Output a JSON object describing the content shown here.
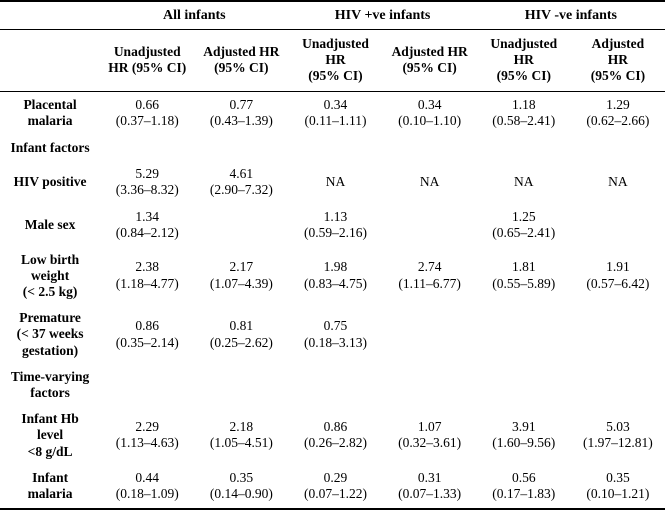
{
  "table": {
    "groups": [
      {
        "label": "",
        "span": 1
      },
      {
        "label": "All infants",
        "span": 2
      },
      {
        "label": "HIV +ve infants",
        "span": 2
      },
      {
        "label": "HIV -ve infants",
        "span": 2
      }
    ],
    "column_headers": [
      "Unadjusted\nHR (95% CI)",
      "Adjusted HR\n(95% CI)",
      "Unadjusted\nHR\n(95% CI)",
      "Adjusted HR\n(95% CI)",
      "Unadjusted\nHR\n(95% CI)",
      "Adjusted\nHR\n(95% CI)"
    ],
    "rows": [
      {
        "type": "data",
        "label": "Placental\nmalaria",
        "cells": [
          "0.66\n(0.37–1.18)",
          "0.77\n(0.43–1.39)",
          "0.34\n(0.11–1.11)",
          "0.34\n(0.10–1.10)",
          "1.18\n(0.58–2.41)",
          "1.29\n(0.62–2.66)"
        ]
      },
      {
        "type": "section",
        "label": "Infant factors",
        "cells": [
          "",
          "",
          "",
          "",
          "",
          ""
        ]
      },
      {
        "type": "data",
        "label": "HIV positive",
        "cells": [
          "5.29\n(3.36–8.32)",
          "4.61\n(2.90–7.32)",
          "NA",
          "NA",
          "NA",
          "NA"
        ]
      },
      {
        "type": "data",
        "label": "Male sex",
        "cells": [
          "1.34\n(0.84–2.12)",
          "",
          "1.13\n(0.59–2.16)",
          "",
          "1.25\n(0.65–2.41)",
          ""
        ]
      },
      {
        "type": "data",
        "label": "Low birth\nweight\n(< 2.5 kg)",
        "cells": [
          "2.38\n(1.18–4.77)",
          "2.17\n(1.07–4.39)",
          "1.98\n(0.83–4.75)",
          "2.74\n(1.11–6.77)",
          "1.81\n(0.55–5.89)",
          "1.91\n(0.57–6.42)"
        ]
      },
      {
        "type": "data",
        "label": "Premature\n(< 37 weeks\ngestation)",
        "cells": [
          "0.86\n(0.35–2.14)",
          "0.81\n(0.25–2.62)",
          "0.75\n(0.18–3.13)",
          "",
          "",
          ""
        ]
      },
      {
        "type": "section",
        "label": "Time-varying\nfactors",
        "cells": [
          "",
          "",
          "",
          "",
          "",
          ""
        ]
      },
      {
        "type": "data",
        "label": "Infant Hb\nlevel\n<8 g/dL",
        "cells": [
          "2.29\n(1.13–4.63)",
          "2.18\n(1.05–4.51)",
          "0.86\n(0.26–2.82)",
          "1.07\n(0.32–3.61)",
          "3.91\n(1.60–9.56)",
          "5.03\n(1.97–12.81)"
        ]
      },
      {
        "type": "data",
        "label": "Infant\nmalaria",
        "cells": [
          "0.44\n(0.18–1.09)",
          "0.35\n(0.14–0.90)",
          "0.29\n(0.07–1.22)",
          "0.31\n(0.07–1.33)",
          "0.56\n(0.17–1.83)",
          "0.35\n(0.10–1.21)"
        ]
      }
    ]
  }
}
